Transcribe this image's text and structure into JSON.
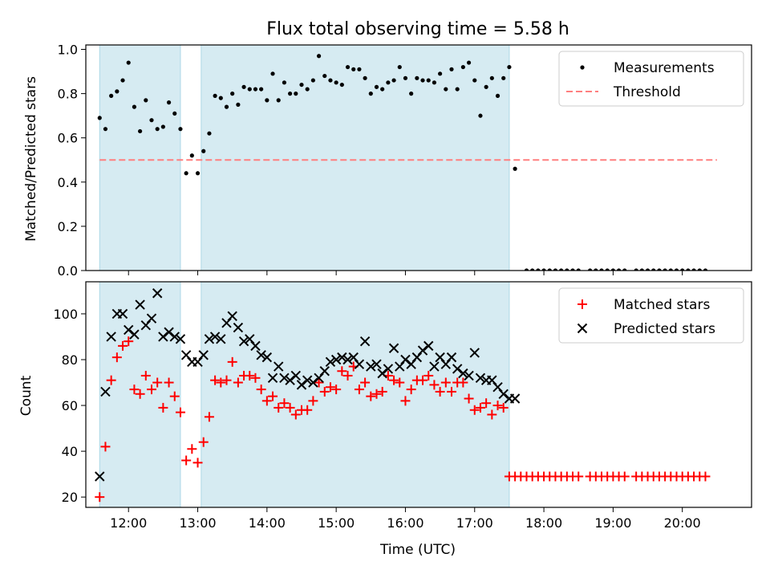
{
  "figure": {
    "title": "Flux total observing time = 5.58 h",
    "xlabel": "Time (UTC)"
  },
  "chart_data": [
    {
      "type": "scatter",
      "ylabel": "Matched/Predicted stars",
      "xlim": [
        "11:23",
        "21:00"
      ],
      "ylim": [
        0,
        1.02
      ],
      "yticks": [
        "0.0",
        "0.2",
        "0.4",
        "0.6",
        "0.8",
        "1.0"
      ],
      "shaded_intervals": [
        [
          "11:35",
          "12:45"
        ],
        [
          "13:03",
          "17:30"
        ]
      ],
      "shade_color": "#add8e6",
      "threshold": {
        "name": "Threshold",
        "value": 0.5,
        "x_range": [
          "11:35",
          "20:30"
        ],
        "color": "#ff7f7f"
      },
      "legend_position": "top-right",
      "series": [
        {
          "name": "Measurements",
          "color": "#000000",
          "marker": "dot",
          "x": [
            "11:35",
            "11:40",
            "11:45",
            "11:50",
            "11:55",
            "12:00",
            "12:05",
            "12:10",
            "12:15",
            "12:20",
            "12:25",
            "12:30",
            "12:35",
            "12:40",
            "12:45",
            "12:50",
            "12:55",
            "13:00",
            "13:05",
            "13:10",
            "13:15",
            "13:20",
            "13:25",
            "13:30",
            "13:35",
            "13:40",
            "13:45",
            "13:50",
            "13:55",
            "14:00",
            "14:05",
            "14:10",
            "14:15",
            "14:20",
            "14:25",
            "14:30",
            "14:35",
            "14:40",
            "14:45",
            "14:50",
            "14:55",
            "15:00",
            "15:05",
            "15:10",
            "15:15",
            "15:20",
            "15:25",
            "15:30",
            "15:35",
            "15:40",
            "15:45",
            "15:50",
            "15:55",
            "16:00",
            "16:05",
            "16:10",
            "16:15",
            "16:20",
            "16:25",
            "16:30",
            "16:35",
            "16:40",
            "16:45",
            "16:50",
            "16:55",
            "17:00",
            "17:05",
            "17:10",
            "17:15",
            "17:20",
            "17:25",
            "17:30",
            "17:35",
            "17:45",
            "17:50",
            "17:55",
            "18:00",
            "18:05",
            "18:10",
            "18:15",
            "18:20",
            "18:25",
            "18:30",
            "18:40",
            "18:45",
            "18:50",
            "18:55",
            "19:00",
            "19:05",
            "19:10",
            "19:20",
            "19:25",
            "19:30",
            "19:35",
            "19:40",
            "19:45",
            "19:50",
            "19:55",
            "20:00",
            "20:05",
            "20:10",
            "20:15",
            "20:20"
          ],
          "y": [
            0.69,
            0.64,
            0.79,
            0.81,
            0.86,
            0.94,
            0.74,
            0.63,
            0.77,
            0.68,
            0.64,
            0.65,
            0.76,
            0.71,
            0.64,
            0.44,
            0.52,
            0.44,
            0.54,
            0.62,
            0.79,
            0.78,
            0.74,
            0.8,
            0.75,
            0.83,
            0.82,
            0.82,
            0.82,
            0.77,
            0.89,
            0.77,
            0.85,
            0.8,
            0.8,
            0.84,
            0.82,
            0.86,
            0.97,
            0.88,
            0.86,
            0.85,
            0.84,
            0.92,
            0.91,
            0.91,
            0.87,
            0.8,
            0.83,
            0.82,
            0.85,
            0.86,
            0.92,
            0.87,
            0.8,
            0.87,
            0.86,
            0.86,
            0.85,
            0.89,
            0.82,
            0.91,
            0.82,
            0.92,
            0.94,
            0.86,
            0.7,
            0.83,
            0.87,
            0.79,
            0.87,
            0.92,
            0.46,
            0,
            0,
            0,
            0,
            0,
            0,
            0,
            0,
            0,
            0,
            0,
            0,
            0,
            0,
            0,
            0,
            0,
            0,
            0,
            0,
            0,
            0,
            0,
            0,
            0,
            0,
            0,
            0,
            0,
            0
          ]
        }
      ]
    },
    {
      "type": "scatter",
      "ylabel": "Count",
      "xlim": [
        "11:23",
        "21:00"
      ],
      "ylim": [
        15.5,
        114
      ],
      "yticks": [
        "20",
        "40",
        "60",
        "80",
        "100"
      ],
      "xticks": [
        "12:00",
        "13:00",
        "14:00",
        "15:00",
        "16:00",
        "17:00",
        "18:00",
        "19:00",
        "20:00"
      ],
      "shaded_intervals": [
        [
          "11:35",
          "12:45"
        ],
        [
          "13:03",
          "17:30"
        ]
      ],
      "shade_color": "#add8e6",
      "legend_position": "top-right",
      "series": [
        {
          "name": "Matched stars",
          "color": "#ff0000",
          "marker": "plus",
          "x": [
            "11:35",
            "11:40",
            "11:45",
            "11:50",
            "11:55",
            "12:00",
            "12:05",
            "12:10",
            "12:15",
            "12:20",
            "12:25",
            "12:30",
            "12:35",
            "12:40",
            "12:45",
            "12:50",
            "12:55",
            "13:00",
            "13:05",
            "13:10",
            "13:15",
            "13:20",
            "13:25",
            "13:30",
            "13:35",
            "13:40",
            "13:45",
            "13:50",
            "13:55",
            "14:00",
            "14:05",
            "14:10",
            "14:15",
            "14:20",
            "14:25",
            "14:30",
            "14:35",
            "14:40",
            "14:45",
            "14:50",
            "14:55",
            "15:00",
            "15:05",
            "15:10",
            "15:15",
            "15:20",
            "15:25",
            "15:30",
            "15:35",
            "15:40",
            "15:45",
            "15:50",
            "15:55",
            "16:00",
            "16:05",
            "16:10",
            "16:15",
            "16:20",
            "16:25",
            "16:30",
            "16:35",
            "16:40",
            "16:45",
            "16:50",
            "16:55",
            "17:00",
            "17:05",
            "17:10",
            "17:15",
            "17:20",
            "17:25",
            "17:30",
            "17:35",
            "17:40",
            "17:45",
            "17:50",
            "17:55",
            "18:00",
            "18:05",
            "18:10",
            "18:15",
            "18:20",
            "18:25",
            "18:30",
            "18:40",
            "18:45",
            "18:50",
            "18:55",
            "19:00",
            "19:05",
            "19:10",
            "19:20",
            "19:25",
            "19:30",
            "19:35",
            "19:40",
            "19:45",
            "19:50",
            "19:55",
            "20:00",
            "20:05",
            "20:10",
            "20:15",
            "20:20"
          ],
          "y": [
            20,
            42,
            71,
            81,
            86,
            88,
            67,
            65,
            73,
            67,
            70,
            59,
            70,
            64,
            57,
            36,
            41,
            35,
            44,
            55,
            71,
            70,
            71,
            79,
            70,
            73,
            73,
            72,
            67,
            62,
            64,
            59,
            61,
            59,
            56,
            58,
            58,
            62,
            70,
            66,
            68,
            67,
            75,
            73,
            77,
            67,
            70,
            64,
            65,
            66,
            73,
            71,
            70,
            62,
            67,
            71,
            71,
            73,
            69,
            66,
            70,
            66,
            70,
            70,
            63,
            58,
            59,
            61,
            56,
            60,
            59,
            29,
            29,
            29,
            29,
            29,
            29,
            29,
            29,
            29,
            29,
            29,
            29,
            29,
            29,
            29,
            29,
            29,
            29,
            29,
            29,
            29,
            29,
            29,
            29,
            29,
            29,
            29,
            29,
            29,
            29,
            29,
            29,
            29
          ]
        },
        {
          "name": "Predicted stars",
          "color": "#000000",
          "marker": "x",
          "x": [
            "11:35",
            "11:40",
            "11:45",
            "11:50",
            "11:55",
            "12:00",
            "12:05",
            "12:10",
            "12:15",
            "12:20",
            "12:25",
            "12:30",
            "12:35",
            "12:40",
            "12:45",
            "12:50",
            "12:55",
            "13:00",
            "13:05",
            "13:10",
            "13:15",
            "13:20",
            "13:25",
            "13:30",
            "13:35",
            "13:40",
            "13:45",
            "13:50",
            "13:55",
            "14:00",
            "14:05",
            "14:10",
            "14:15",
            "14:20",
            "14:25",
            "14:30",
            "14:35",
            "14:40",
            "14:45",
            "14:50",
            "14:55",
            "15:00",
            "15:05",
            "15:10",
            "15:15",
            "15:20",
            "15:25",
            "15:30",
            "15:35",
            "15:40",
            "15:45",
            "15:50",
            "15:55",
            "16:00",
            "16:05",
            "16:10",
            "16:15",
            "16:20",
            "16:25",
            "16:30",
            "16:35",
            "16:40",
            "16:45",
            "16:50",
            "16:55",
            "17:00",
            "17:05",
            "17:10",
            "17:15",
            "17:20",
            "17:25",
            "17:30",
            "17:35"
          ],
          "y": [
            29,
            66,
            90,
            100,
            100,
            93,
            91,
            104,
            95,
            98,
            109,
            90,
            92,
            90,
            89,
            82,
            79,
            79,
            82,
            89,
            90,
            89,
            96,
            99,
            94,
            88,
            89,
            86,
            82,
            81,
            72,
            77,
            72,
            71,
            73,
            69,
            71,
            70,
            72,
            75,
            79,
            80,
            81,
            80,
            81,
            78,
            88,
            77,
            78,
            74,
            76,
            85,
            77,
            80,
            78,
            81,
            84,
            86,
            77,
            81,
            78,
            81,
            76,
            74,
            73,
            83,
            72,
            71,
            71,
            68,
            65,
            63,
            63
          ]
        }
      ]
    }
  ]
}
